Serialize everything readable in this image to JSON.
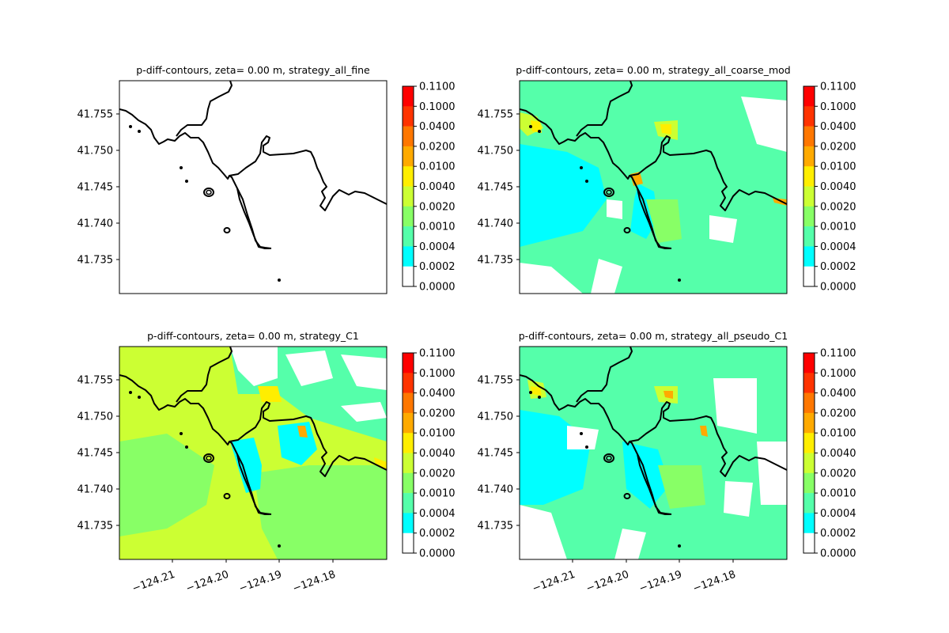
{
  "chart_data": {
    "type": "heatmap",
    "colorbar": {
      "levels": [
        "0.1100",
        "0.1000",
        "0.0400",
        "0.0200",
        "0.0100",
        "0.0040",
        "0.0020",
        "0.0010",
        "0.0004",
        "0.0002",
        "0.0000"
      ],
      "colors": [
        "#ff0000",
        "#ff3300",
        "#ff7700",
        "#ffaa00",
        "#ffee00",
        "#ccff33",
        "#88ff66",
        "#55ffaa",
        "#00ffff",
        "#ffffff"
      ]
    },
    "y_ticks": [
      "41.755",
      "41.750",
      "41.745",
      "41.740",
      "41.735"
    ],
    "x_ticks": [
      "−124.21",
      "−124.20",
      "−124.19",
      "−124.18"
    ],
    "panels": [
      {
        "title": "p-diff-contours, zeta= 0.00 m, strategy_all_fine",
        "show_xticks": false,
        "fill": "none"
      },
      {
        "title": "p-diff-contours, zeta= 0.00 m, strategy_all_coarse_mod",
        "show_xticks": false,
        "fill": "coarse"
      },
      {
        "title": "p-diff-contours, zeta= 0.00 m, strategy_C1",
        "show_xticks": true,
        "fill": "c1"
      },
      {
        "title": "p-diff-contours, zeta= 0.00 m, strategy_all_pseudo_C1",
        "show_xticks": true,
        "fill": "pseudo"
      }
    ]
  }
}
